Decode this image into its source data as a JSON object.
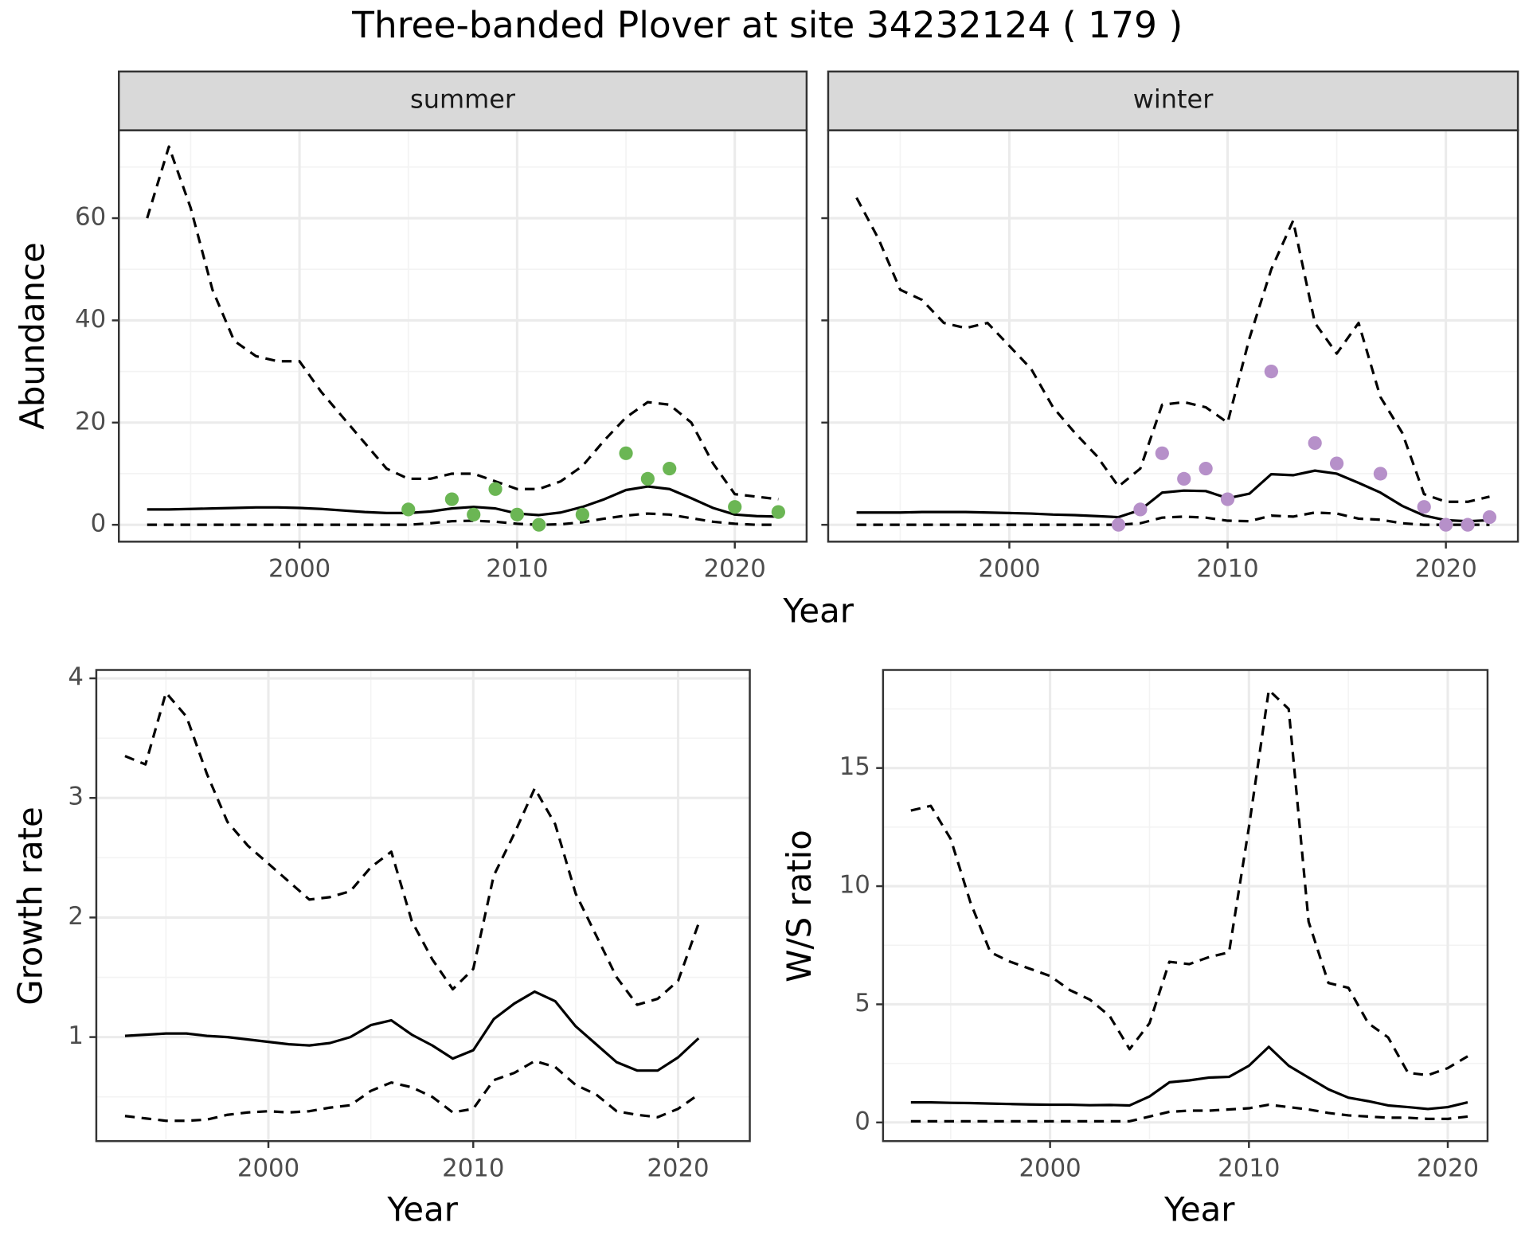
{
  "title": "Three-banded Plover at site 34232124 ( 179 )",
  "chart_data": [
    {
      "type": "line",
      "strip": "summer",
      "xlabel": "Year",
      "ylabel": "Abundance",
      "x": [
        1993,
        1994,
        1995,
        1996,
        1997,
        1998,
        1999,
        2000,
        2001,
        2002,
        2003,
        2004,
        2005,
        2006,
        2007,
        2008,
        2009,
        2010,
        2011,
        2012,
        2013,
        2014,
        2015,
        2016,
        2017,
        2018,
        2019,
        2020,
        2021,
        2022
      ],
      "xlim": [
        1991.7,
        2023.3
      ],
      "xticks": [
        2000,
        2010,
        2020
      ],
      "ylim": [
        -3.3,
        77.2
      ],
      "yticks": [
        0,
        20,
        40,
        60
      ],
      "grid": true,
      "series": [
        {
          "linetype": "solid",
          "color": "#000000",
          "values": [
            3,
            3,
            3.1,
            3.2,
            3.3,
            3.4,
            3.4,
            3.3,
            3.1,
            2.8,
            2.5,
            2.3,
            2.3,
            2.6,
            3.2,
            3.5,
            3.2,
            2.2,
            1.9,
            2.4,
            3.5,
            5,
            6.8,
            7.5,
            7,
            5.2,
            3.3,
            2,
            1.7,
            1.6
          ]
        },
        {
          "linetype": "dashed",
          "color": "#000000",
          "values": [
            60,
            74,
            62,
            46,
            36,
            33,
            32,
            32,
            26,
            21,
            16,
            11,
            9,
            9,
            10,
            10,
            8.5,
            7,
            7,
            8.5,
            11.5,
            16.5,
            21,
            24,
            23.5,
            20,
            12,
            6,
            5.5,
            5
          ]
        },
        {
          "linetype": "dashed",
          "color": "#000000",
          "values": [
            0,
            0,
            0,
            0,
            0,
            0,
            0,
            0,
            0,
            0,
            0,
            0,
            0,
            0.3,
            0.7,
            0.8,
            0.6,
            0.2,
            0,
            0.1,
            0.5,
            1.2,
            1.8,
            2.2,
            2,
            1.3,
            0.6,
            0.2,
            0,
            0
          ]
        },
        {
          "linetype": "points",
          "color": "#6bb654",
          "x": [
            2005,
            2007,
            2008,
            2009,
            2010,
            2011,
            2013,
            2015,
            2016,
            2017,
            2020,
            2022
          ],
          "values": [
            3,
            5,
            2,
            7,
            2,
            0,
            2,
            14,
            9,
            11,
            3.5,
            2.5
          ]
        }
      ]
    },
    {
      "type": "line",
      "strip": "winter",
      "show_ytick_labels": false,
      "x": [
        1993,
        1994,
        1995,
        1996,
        1997,
        1998,
        1999,
        2000,
        2001,
        2002,
        2003,
        2004,
        2005,
        2006,
        2007,
        2008,
        2009,
        2010,
        2011,
        2012,
        2013,
        2014,
        2015,
        2016,
        2017,
        2018,
        2019,
        2020,
        2021,
        2022
      ],
      "xlim": [
        1991.7,
        2023.3
      ],
      "xticks": [
        2000,
        2010,
        2020
      ],
      "ylim": [
        -3.3,
        77.2
      ],
      "yticks": [
        0,
        20,
        40,
        60
      ],
      "grid": true,
      "series": [
        {
          "linetype": "solid",
          "color": "#000000",
          "values": [
            2.4,
            2.4,
            2.4,
            2.5,
            2.5,
            2.5,
            2.4,
            2.3,
            2.2,
            2,
            1.9,
            1.7,
            1.5,
            2.9,
            6.3,
            6.7,
            6.6,
            5.2,
            6.1,
            9.9,
            9.7,
            10.6,
            10,
            8.2,
            6.3,
            3.7,
            1.8,
            0.9,
            0.7,
            0.9
          ]
        },
        {
          "linetype": "dashed",
          "color": "#000000",
          "values": [
            64,
            56,
            46,
            44,
            39.5,
            38.5,
            39.5,
            35,
            30.5,
            23,
            18,
            13.5,
            7.5,
            11,
            23.5,
            24,
            23,
            20,
            36.5,
            50,
            59.5,
            39.5,
            33.5,
            39.5,
            25,
            18,
            6,
            4.5,
            4.5,
            5.5
          ]
        },
        {
          "linetype": "dashed",
          "color": "#000000",
          "values": [
            0,
            0,
            0,
            0,
            0,
            0,
            0,
            0,
            0,
            0,
            0,
            0,
            0,
            0.3,
            1.4,
            1.6,
            1.4,
            0.8,
            0.7,
            1.8,
            1.6,
            2.4,
            2.2,
            1.2,
            1,
            0.3,
            0,
            0,
            0,
            0
          ]
        },
        {
          "linetype": "points",
          "color": "#b690c9",
          "x": [
            2005,
            2006,
            2007,
            2008,
            2009,
            2010,
            2012,
            2014,
            2015,
            2017,
            2019,
            2020,
            2021,
            2022
          ],
          "values": [
            0,
            3,
            14,
            9,
            11,
            5,
            30,
            16,
            12,
            10,
            3.5,
            0,
            0,
            1.5
          ]
        }
      ]
    },
    {
      "type": "line",
      "xlabel": "Year",
      "ylabel": "Growth rate",
      "x": [
        1993,
        1994,
        1995,
        1996,
        1997,
        1998,
        1999,
        2000,
        2001,
        2002,
        2003,
        2004,
        2005,
        2006,
        2007,
        2008,
        2009,
        2010,
        2011,
        2012,
        2013,
        2014,
        2015,
        2016,
        2017,
        2018,
        2019,
        2020,
        2021
      ],
      "xlim": [
        1991.6,
        2023.5
      ],
      "xticks": [
        2000,
        2010,
        2020
      ],
      "ylim": [
        0.13,
        4.07
      ],
      "yticks": [
        1,
        2,
        3,
        4
      ],
      "grid": true,
      "series": [
        {
          "linetype": "solid",
          "color": "#000000",
          "values": [
            1.01,
            1.02,
            1.03,
            1.03,
            1.01,
            1,
            0.98,
            0.96,
            0.94,
            0.93,
            0.95,
            1,
            1.1,
            1.14,
            1.02,
            0.93,
            0.82,
            0.89,
            1.15,
            1.28,
            1.38,
            1.3,
            1.09,
            0.94,
            0.79,
            0.72,
            0.72,
            0.83,
            0.99
          ]
        },
        {
          "linetype": "dashed",
          "color": "#000000",
          "values": [
            3.35,
            3.28,
            3.88,
            3.68,
            3.2,
            2.8,
            2.6,
            2.45,
            2.3,
            2.15,
            2.17,
            2.22,
            2.42,
            2.55,
            1.97,
            1.65,
            1.4,
            1.57,
            2.35,
            2.7,
            3.08,
            2.78,
            2.2,
            1.85,
            1.5,
            1.27,
            1.32,
            1.47,
            1.95
          ]
        },
        {
          "linetype": "dashed",
          "color": "#000000",
          "values": [
            0.34,
            0.32,
            0.3,
            0.3,
            0.31,
            0.35,
            0.37,
            0.38,
            0.37,
            0.38,
            0.41,
            0.43,
            0.55,
            0.62,
            0.58,
            0.5,
            0.37,
            0.4,
            0.64,
            0.7,
            0.8,
            0.75,
            0.6,
            0.52,
            0.38,
            0.35,
            0.33,
            0.4,
            0.52
          ]
        }
      ]
    },
    {
      "type": "line",
      "xlabel": "Year",
      "ylabel": "W/S ratio",
      "x": [
        1993,
        1994,
        1995,
        1996,
        1997,
        1998,
        1999,
        2000,
        2001,
        2002,
        2003,
        2004,
        2005,
        2006,
        2007,
        2008,
        2009,
        2010,
        2011,
        2012,
        2013,
        2014,
        2015,
        2016,
        2017,
        2018,
        2019,
        2020,
        2021
      ],
      "xlim": [
        1991.6,
        2022.0
      ],
      "xticks": [
        2000,
        2010,
        2020
      ],
      "ylim": [
        -0.79,
        19.15
      ],
      "yticks": [
        0,
        5,
        10,
        15
      ],
      "grid": true,
      "series": [
        {
          "linetype": "solid",
          "color": "#000000",
          "values": [
            0.85,
            0.85,
            0.83,
            0.82,
            0.8,
            0.78,
            0.76,
            0.75,
            0.75,
            0.73,
            0.74,
            0.72,
            1.1,
            1.7,
            1.78,
            1.9,
            1.93,
            2.4,
            3.2,
            2.4,
            1.9,
            1.4,
            1.05,
            0.9,
            0.72,
            0.65,
            0.57,
            0.65,
            0.85
          ]
        },
        {
          "linetype": "dashed",
          "color": "#000000",
          "values": [
            13.2,
            13.4,
            12,
            9.3,
            7.2,
            6.8,
            6.5,
            6.2,
            5.6,
            5.2,
            4.5,
            3.1,
            4.2,
            6.8,
            6.7,
            7,
            7.2,
            12.5,
            18.3,
            17.5,
            8.5,
            5.9,
            5.7,
            4.2,
            3.6,
            2.1,
            2,
            2.3,
            2.8
          ]
        },
        {
          "linetype": "dashed",
          "color": "#000000",
          "values": [
            0.05,
            0.05,
            0.05,
            0.05,
            0.05,
            0.05,
            0.05,
            0.05,
            0.05,
            0.05,
            0.05,
            0.05,
            0.25,
            0.45,
            0.5,
            0.5,
            0.55,
            0.6,
            0.75,
            0.65,
            0.55,
            0.4,
            0.3,
            0.25,
            0.2,
            0.2,
            0.15,
            0.15,
            0.25
          ]
        }
      ]
    }
  ]
}
